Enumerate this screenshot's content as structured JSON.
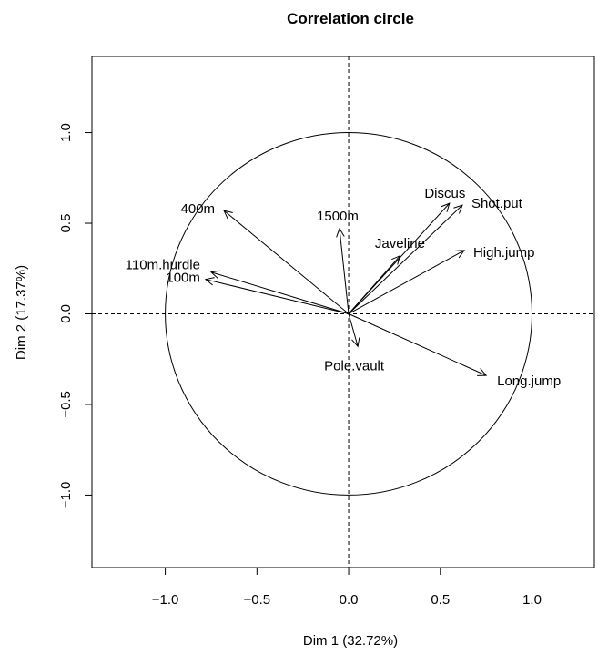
{
  "chart_data": {
    "type": "scatter",
    "title": "Correlation circle",
    "xlabel": "Dim 1 (32.72%)",
    "ylabel": "Dim 2 (17.37%)",
    "xlim": [
      -1.4,
      1.34
    ],
    "ylim": [
      -1.4,
      1.42
    ],
    "xticks": [
      -1.0,
      -0.5,
      0.0,
      0.5,
      1.0
    ],
    "yticks": [
      -1.0,
      -0.5,
      0.0,
      0.5,
      1.0
    ],
    "xtick_labels": [
      "−1.0",
      "−0.5",
      "0.0",
      "0.5",
      "1.0"
    ],
    "ytick_labels": [
      "−1.0",
      "−0.5",
      "0.0",
      "0.5",
      "1.0"
    ],
    "unit_circle": true,
    "reference_lines": "dashed at x=0 and y=0",
    "grid": false,
    "variables": [
      {
        "name": "100m",
        "x": -0.78,
        "y": 0.19
      },
      {
        "name": "110m.hurdle",
        "x": -0.75,
        "y": 0.23
      },
      {
        "name": "400m",
        "x": -0.68,
        "y": 0.57
      },
      {
        "name": "1500m",
        "x": -0.05,
        "y": 0.47
      },
      {
        "name": "Discus",
        "x": 0.55,
        "y": 0.61
      },
      {
        "name": "Shot.put",
        "x": 0.62,
        "y": 0.6
      },
      {
        "name": "Javeline",
        "x": 0.28,
        "y": 0.32
      },
      {
        "name": "High.jump",
        "x": 0.63,
        "y": 0.35
      },
      {
        "name": "Pole.vault",
        "x": 0.05,
        "y": -0.18
      },
      {
        "name": "Long.jump",
        "x": 0.75,
        "y": -0.34
      }
    ]
  }
}
